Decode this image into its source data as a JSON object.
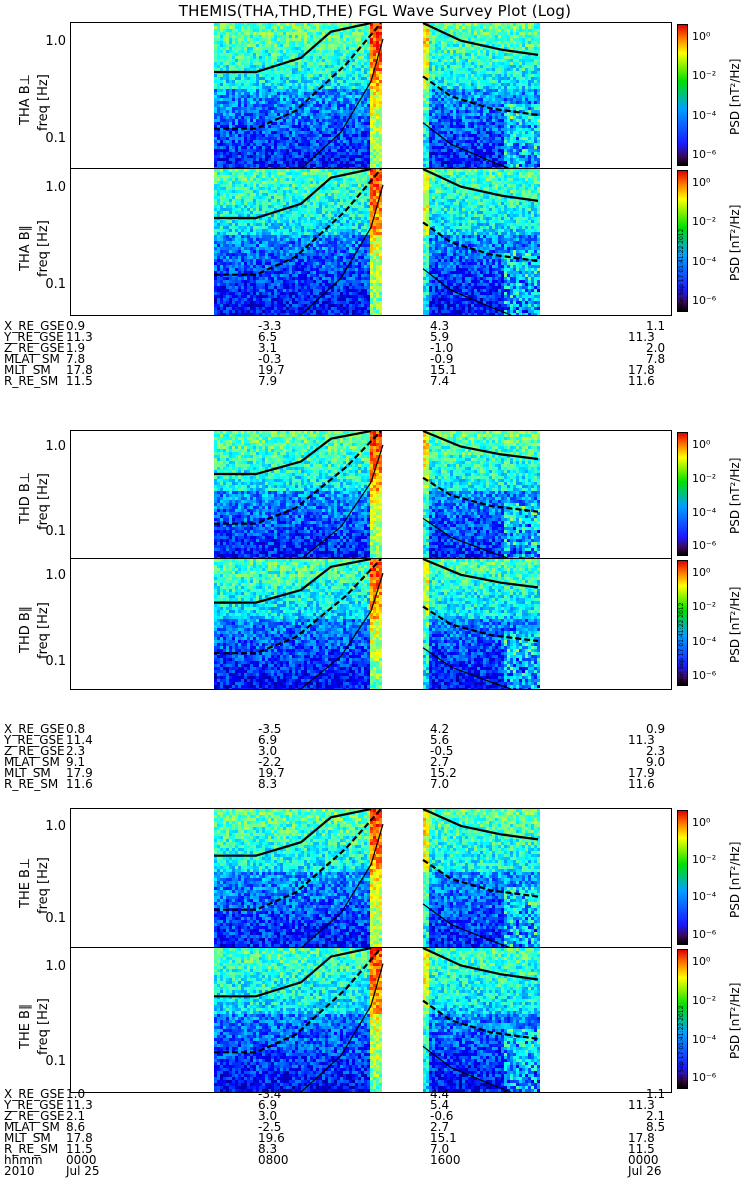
{
  "title": "THEMIS(THA,THD,THE) FGL Wave Survey Plot (Log)",
  "colorbar": {
    "title": "PSD [nT²/Hz]",
    "ticks": [
      "10⁰",
      "10⁻²",
      "10⁻⁴",
      "10⁻⁶"
    ],
    "stamp": "Mon Sep 17 01:41:22 2012"
  },
  "freq_ticks": [
    "1.0",
    "0.1"
  ],
  "chart_data": [
    {
      "type": "heatmap",
      "panel": "THA B⊥",
      "ylabel": "freq [Hz]",
      "title": "THA B⊥",
      "yscale": "log",
      "ylim": [
        0.05,
        1.6
      ]
    },
    {
      "type": "heatmap",
      "panel": "THA B∥",
      "ylabel": "freq [Hz]",
      "title": "THA B∥",
      "yscale": "log",
      "ylim": [
        0.05,
        1.6
      ]
    },
    {
      "type": "heatmap",
      "panel": "THD B⊥",
      "ylabel": "freq [Hz]",
      "title": "THD B⊥",
      "yscale": "log",
      "ylim": [
        0.05,
        1.6
      ]
    },
    {
      "type": "heatmap",
      "panel": "THD B∥",
      "ylabel": "freq [Hz]",
      "title": "THD B∥",
      "yscale": "log",
      "ylim": [
        0.05,
        1.6
      ]
    },
    {
      "type": "heatmap",
      "panel": "THE B⊥",
      "ylabel": "freq [Hz]",
      "title": "THE B⊥",
      "yscale": "log",
      "ylim": [
        0.05,
        1.6
      ]
    },
    {
      "type": "heatmap",
      "panel": "THE B∥",
      "ylabel": "freq [Hz]",
      "title": "THE B∥",
      "yscale": "log",
      "ylim": [
        0.05,
        1.6
      ]
    }
  ],
  "panels": [
    {
      "label": "THA B⊥",
      "freq": "freq [Hz]"
    },
    {
      "label": "THA B∥",
      "freq": "freq [Hz]"
    },
    {
      "label": "THD B⊥",
      "freq": "freq [Hz]"
    },
    {
      "label": "THD B∥",
      "freq": "freq [Hz]"
    },
    {
      "label": "THE B⊥",
      "freq": "freq [Hz]"
    },
    {
      "label": "THE B∥",
      "freq": "freq [Hz]"
    }
  ],
  "orbit_blocks": [
    {
      "rows": [
        [
          "X_RE_GSE",
          "0.9",
          "-3.3",
          "4.3",
          "1.1"
        ],
        [
          "Y_RE_GSE",
          "11.3",
          "6.5",
          "5.9",
          "11.3"
        ],
        [
          "Z_RE_GSE",
          "1.9",
          "3.1",
          "-1.0",
          "2.0"
        ],
        [
          "MLAT_SM",
          "7.8",
          "-0.3",
          "-0.9",
          "7.8"
        ],
        [
          "MLT_SM",
          "17.8",
          "19.7",
          "15.1",
          "17.8"
        ],
        [
          "R_RE_SM",
          "11.5",
          "7.9",
          "7.4",
          "11.6"
        ]
      ]
    },
    {
      "rows": [
        [
          "X_RE_GSE",
          "0.8",
          "-3.5",
          "4.2",
          "0.9"
        ],
        [
          "Y_RE_GSE",
          "11.4",
          "6.9",
          "5.6",
          "11.3"
        ],
        [
          "Z_RE_GSE",
          "2.3",
          "3.0",
          "-0.5",
          "2.3"
        ],
        [
          "MLAT_SM",
          "9.1",
          "-2.2",
          "2.7",
          "9.0"
        ],
        [
          "MLT_SM",
          "17.9",
          "19.7",
          "15.2",
          "17.9"
        ],
        [
          "R_RE_SM",
          "11.6",
          "8.3",
          "7.0",
          "11.6"
        ]
      ]
    },
    {
      "rows": [
        [
          "X_RE_GSE",
          "1.0",
          "-3.4",
          "4.4",
          "1.1"
        ],
        [
          "Y_RE_GSE",
          "11.3",
          "6.9",
          "5.4",
          "11.3"
        ],
        [
          "Z_RE_GSE",
          "2.1",
          "3.0",
          "-0.6",
          "2.1"
        ],
        [
          "MLAT_SM",
          "8.6",
          "-2.5",
          "2.7",
          "8.5"
        ],
        [
          "MLT_SM",
          "17.8",
          "19.6",
          "15.1",
          "17.8"
        ],
        [
          "R_RE_SM",
          "11.5",
          "8.3",
          "7.0",
          "11.5"
        ],
        [
          "hhmm",
          "0000",
          "0800",
          "1600",
          "0000"
        ],
        [
          "2010",
          "Jul 25",
          "",
          "",
          "Jul 26"
        ]
      ]
    }
  ]
}
